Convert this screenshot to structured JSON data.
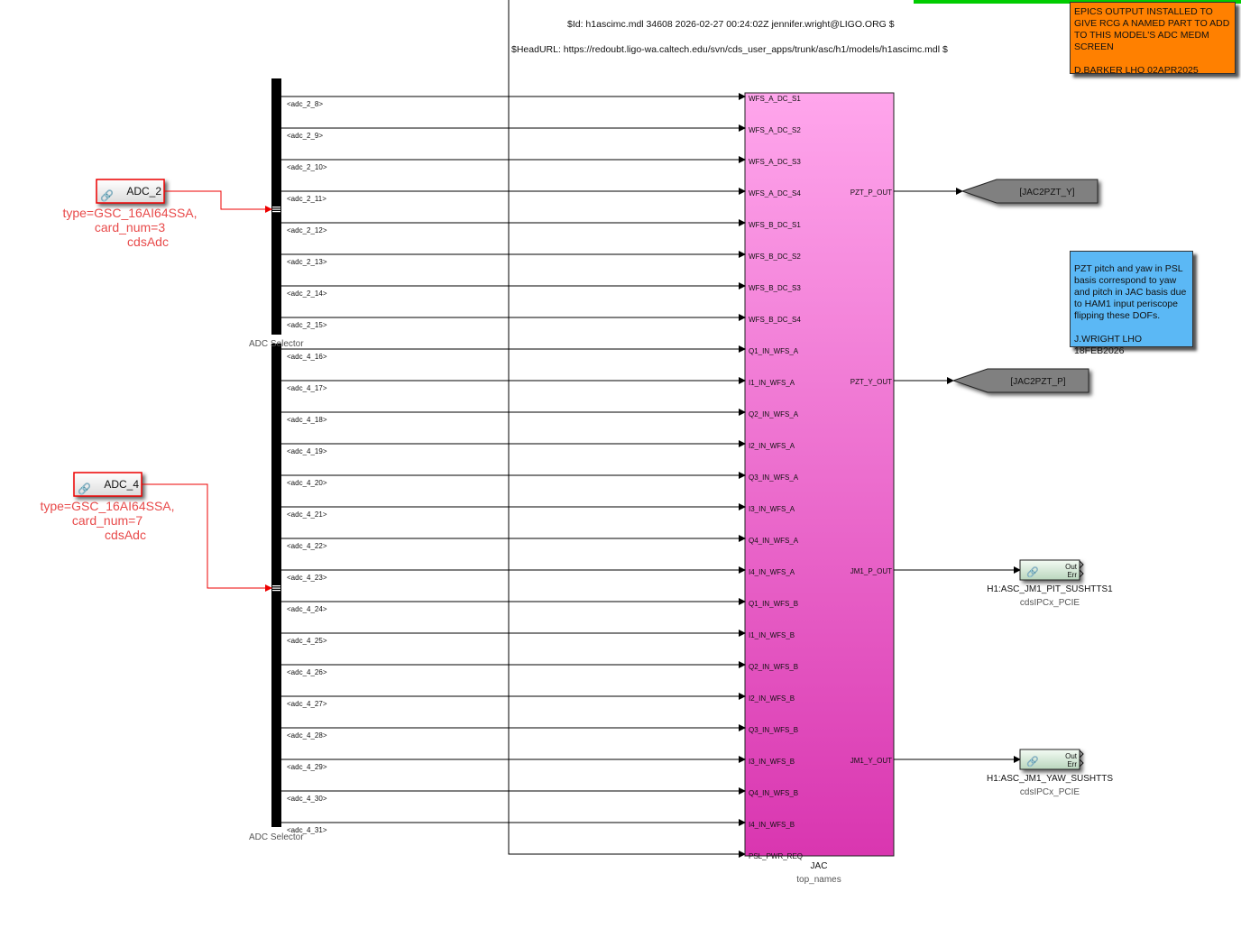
{
  "header": {
    "id_line": "$Id: h1ascimc.mdl 34608 2026-02-27 00:24:02Z jennifer.wright@LIGO.ORG $",
    "url_line": "$HeadURL: https://redoubt.ligo-wa.caltech.edu/svn/cds_user_apps/trunk/asc/h1/models/h1ascimc.mdl $"
  },
  "notes": {
    "epics": {
      "text": "EPICS OUTPUT INSTALLED TO GIVE RCG A NAMED PART TO ADD TO THIS MODEL'S ADC MEDM SCREEN\n\nD.BARKER LHO 02APR2025",
      "color": "#ff8000"
    },
    "pzt": {
      "text": "PZT pitch and yaw in PSL basis correspond to yaw and pitch in JAC basis due to HAM1 input periscope flipping these DOFs.\n\nJ.WRIGHT LHO 18FEB2026",
      "color": "#5bb8f5"
    }
  },
  "adcs": [
    {
      "name": "ADC_2",
      "params": [
        "type=GSC_16AI64SSA,",
        "card_num=3",
        "cdsAdc"
      ]
    },
    {
      "name": "ADC_4",
      "params": [
        "type=GSC_16AI64SSA,",
        "card_num=7",
        "cdsAdc"
      ]
    }
  ],
  "selectors": [
    "ADC Selector",
    "ADC Selector"
  ],
  "signals": [
    "<adc_2_8>",
    "<adc_2_9>",
    "<adc_2_10>",
    "<adc_2_11>",
    "<adc_2_12>",
    "<adc_2_13>",
    "<adc_2_14>",
    "<adc_2_15>",
    "<adc_4_16>",
    "<adc_4_17>",
    "<adc_4_18>",
    "<adc_4_19>",
    "<adc_4_20>",
    "<adc_4_21>",
    "<adc_4_22>",
    "<adc_4_23>",
    "<adc_4_24>",
    "<adc_4_25>",
    "<adc_4_26>",
    "<adc_4_27>",
    "<adc_4_28>",
    "<adc_4_29>",
    "<adc_4_30>",
    "<adc_4_31>"
  ],
  "jac": {
    "name": "JAC",
    "subtitle": "top_names",
    "inputs": [
      "WFS_A_DC_S1",
      "WFS_A_DC_S2",
      "WFS_A_DC_S3",
      "WFS_A_DC_S4",
      "WFS_B_DC_S1",
      "WFS_B_DC_S2",
      "WFS_B_DC_S3",
      "WFS_B_DC_S4",
      "Q1_IN_WFS_A",
      "I1_IN_WFS_A",
      "Q2_IN_WFS_A",
      "I2_IN_WFS_A",
      "Q3_IN_WFS_A",
      "I3_IN_WFS_A",
      "Q4_IN_WFS_A",
      "I4_IN_WFS_A",
      "Q1_IN_WFS_B",
      "I1_IN_WFS_B",
      "Q2_IN_WFS_B",
      "I2_IN_WFS_B",
      "Q3_IN_WFS_B",
      "I3_IN_WFS_B",
      "Q4_IN_WFS_B",
      "I4_IN_WFS_B",
      "PSL_PWR_REQ"
    ],
    "outputs": [
      {
        "label": "PZT_P_OUT",
        "port": 3,
        "target": "goto",
        "goto": "[JAC2PZT_Y]"
      },
      {
        "label": "PZT_Y_OUT",
        "port": 9,
        "target": "goto",
        "goto": "[JAC2PZT_P]"
      },
      {
        "label": "JM1_P_OUT",
        "port": 15,
        "target": "ipc",
        "name": "H1:ASC_JM1_PIT_SUSHTTS1",
        "lib": "cdsIPCx_PCIE"
      },
      {
        "label": "JM1_Y_OUT",
        "port": 21,
        "target": "ipc",
        "name": "H1:ASC_JM1_YAW_SUSHTTS",
        "lib": "cdsIPCx_PCIE"
      }
    ],
    "top_color": "#ffa6ec",
    "bottom_color": "#d936b0"
  },
  "ipc_ports": [
    "Out",
    "Err"
  ]
}
